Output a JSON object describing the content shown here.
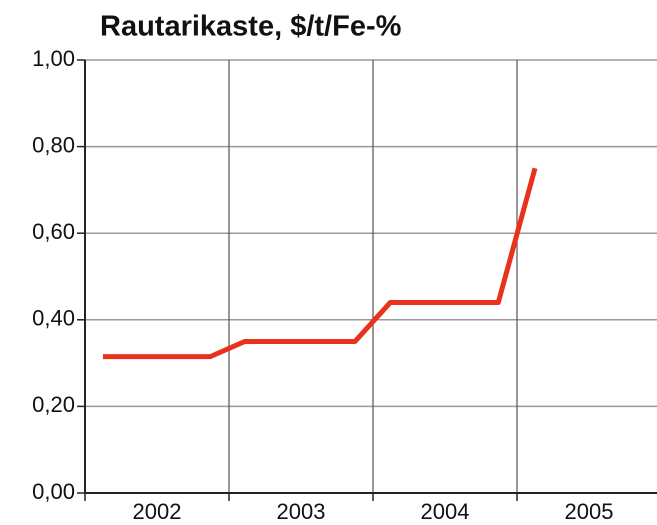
{
  "chart_data": {
    "type": "line",
    "title": "Rautarikaste, $/t/Fe-%",
    "categories": [
      "2002",
      "2003",
      "2004",
      "2005"
    ],
    "xlim": [
      2002,
      2006
    ],
    "xticks": [
      2002,
      2003,
      2004,
      2005
    ],
    "ylim": [
      0,
      1
    ],
    "yticks": [
      {
        "value": 0,
        "label": "0,00"
      },
      {
        "value": 0.2,
        "label": "0,20"
      },
      {
        "value": 0.4,
        "label": "0,40"
      },
      {
        "value": 0.6,
        "label": "0,60"
      },
      {
        "value": 0.8,
        "label": "0,80"
      },
      {
        "value": 1,
        "label": "1,00"
      }
    ],
    "grid": true,
    "series": [
      {
        "color": "#e8321e",
        "x": [
          2002.125,
          2002.87,
          2003.11,
          2003.875,
          2004.12,
          2004.87,
          2005.125
        ],
        "values": [
          0.315,
          0.315,
          0.35,
          0.35,
          0.44,
          0.44,
          0.75
        ]
      }
    ]
  }
}
